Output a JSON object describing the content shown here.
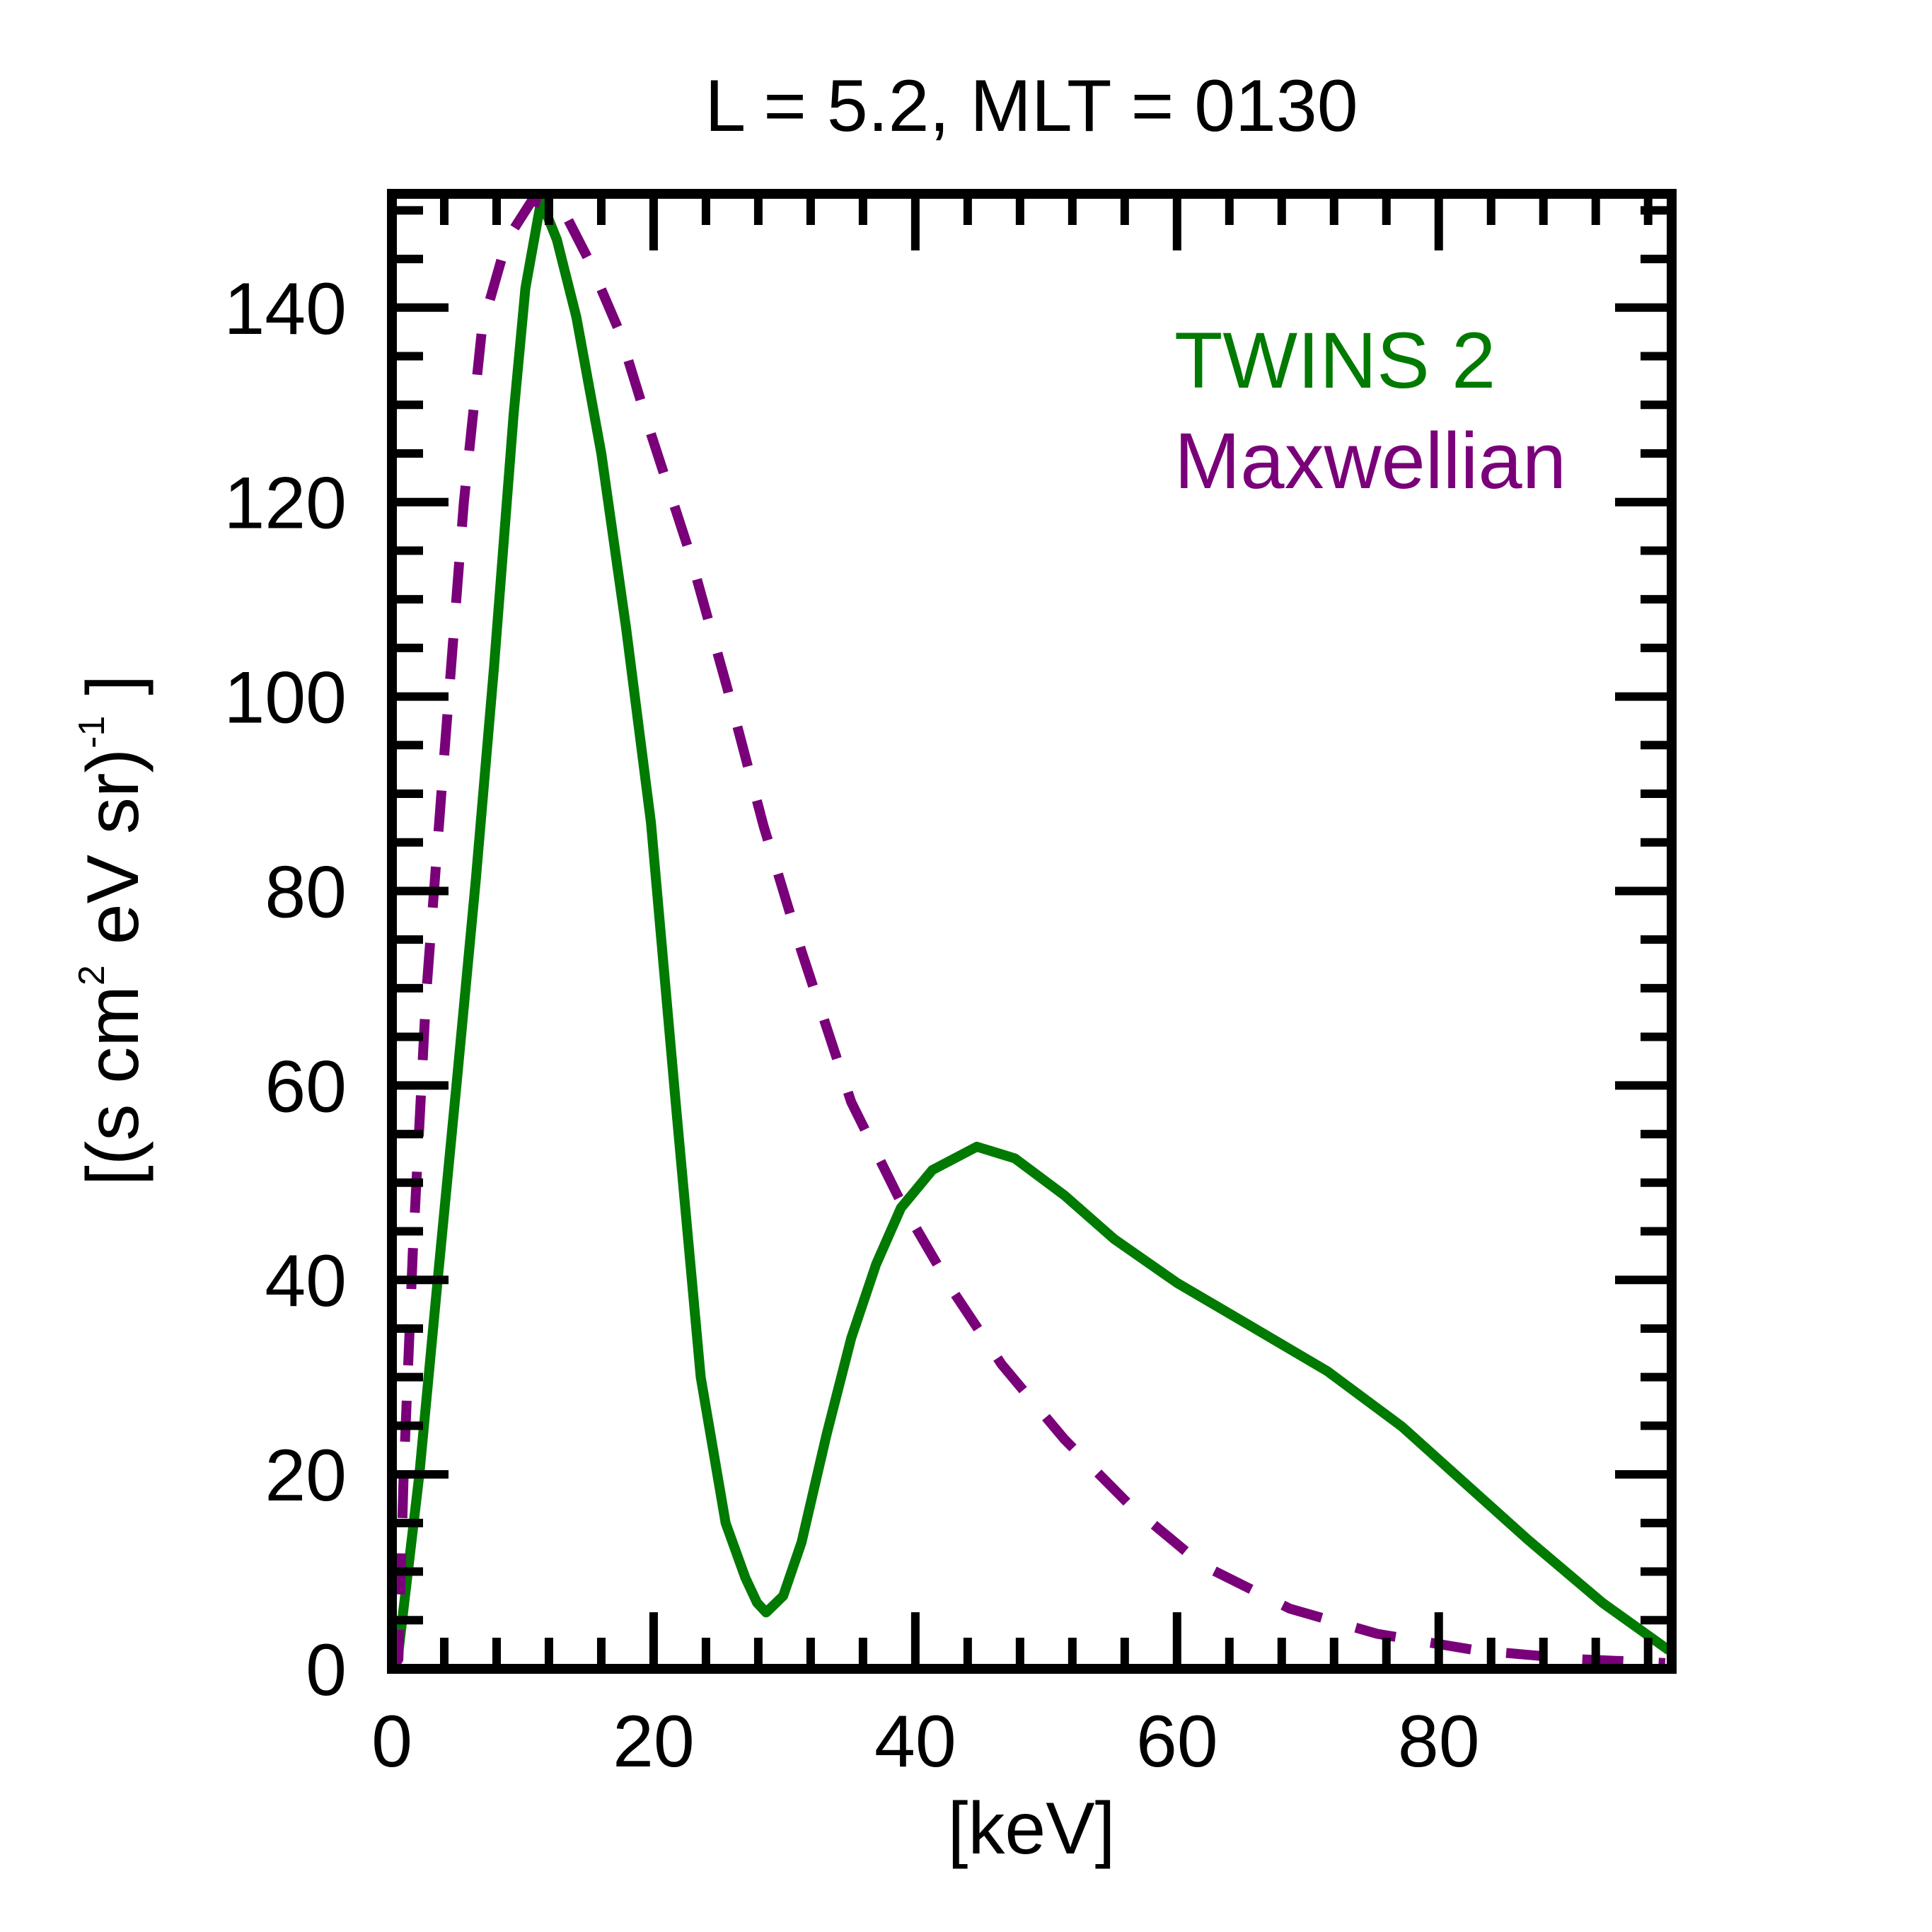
{
  "chart_data": {
    "type": "line",
    "title": "L =  5.2, MLT = 0130",
    "xlabel": "[keV]",
    "ylabel": {
      "base": "[(s cm",
      "sup1": "2",
      "mid": " eV sr)",
      "sup2": "-1",
      "end": " ]"
    },
    "xlim": [
      0,
      97.8
    ],
    "ylim": [
      0,
      151.7
    ],
    "xticks": [
      0,
      20,
      40,
      60,
      80
    ],
    "xtick_labels": [
      "0",
      "20",
      "40",
      "60",
      "80"
    ],
    "x_minor_step": 4,
    "yticks": [
      0,
      20,
      40,
      60,
      80,
      100,
      120,
      140
    ],
    "ytick_labels": [
      "0",
      "20",
      "40",
      "60",
      "80",
      "100",
      "120",
      "140"
    ],
    "y_minor_step": 5,
    "grid": false,
    "legend": {
      "placement": "top-right",
      "entries": [
        "TWINS 2",
        "Maxwellian"
      ]
    },
    "series": [
      {
        "name": "TWINS 2",
        "color": "#007a00",
        "style": "solid",
        "x": [
          0,
          0.5,
          2.1,
          3.5,
          5,
          6.4,
          7.8,
          9.3,
          10.2,
          11.4,
          12.6,
          14.1,
          16,
          17.9,
          19.8,
          21.7,
          23.6,
          25.5,
          27,
          27.9,
          28.6,
          29.9,
          31.3,
          33.2,
          35.1,
          37,
          38.9,
          41.3,
          44.7,
          47.6,
          51.4,
          55.2,
          60,
          65.7,
          71.5,
          77.2,
          81,
          86.8,
          92.5,
          97.6
        ],
        "y": [
          0,
          1.7,
          20,
          40,
          61,
          81,
          103,
          129,
          142,
          151,
          147,
          139,
          125,
          107,
          87,
          58,
          30,
          15,
          9.4,
          6.8,
          5.8,
          7.5,
          13,
          24,
          34,
          41.6,
          47.4,
          51.3,
          53.7,
          52.5,
          48.7,
          44.2,
          39.7,
          35.2,
          30.6,
          24.9,
          20.3,
          13.3,
          6.8,
          1.9
        ]
      },
      {
        "name": "Maxwellian",
        "color": "#7a007a",
        "style": "dashed",
        "x": [
          0,
          0.5,
          0.9,
          1.6,
          2.6,
          4,
          5.5,
          6.9,
          8.8,
          10.7,
          13.1,
          15,
          17.4,
          19.8,
          22.7,
          25.6,
          28.4,
          31.3,
          35.1,
          38.9,
          42.8,
          46.6,
          51.4,
          56.2,
          61.9,
          68.6,
          75.3,
          82.9,
          90.6,
          97.3
        ],
        "y": [
          0,
          1,
          20,
          43,
          69,
          94,
          120,
          138,
          147,
          151,
          150,
          145,
          137.5,
          127,
          115,
          101,
          86.7,
          73.8,
          58.3,
          48,
          39,
          31.3,
          23.6,
          17.1,
          10.7,
          6.2,
          3.6,
          1.9,
          1,
          0.6
        ]
      }
    ]
  }
}
